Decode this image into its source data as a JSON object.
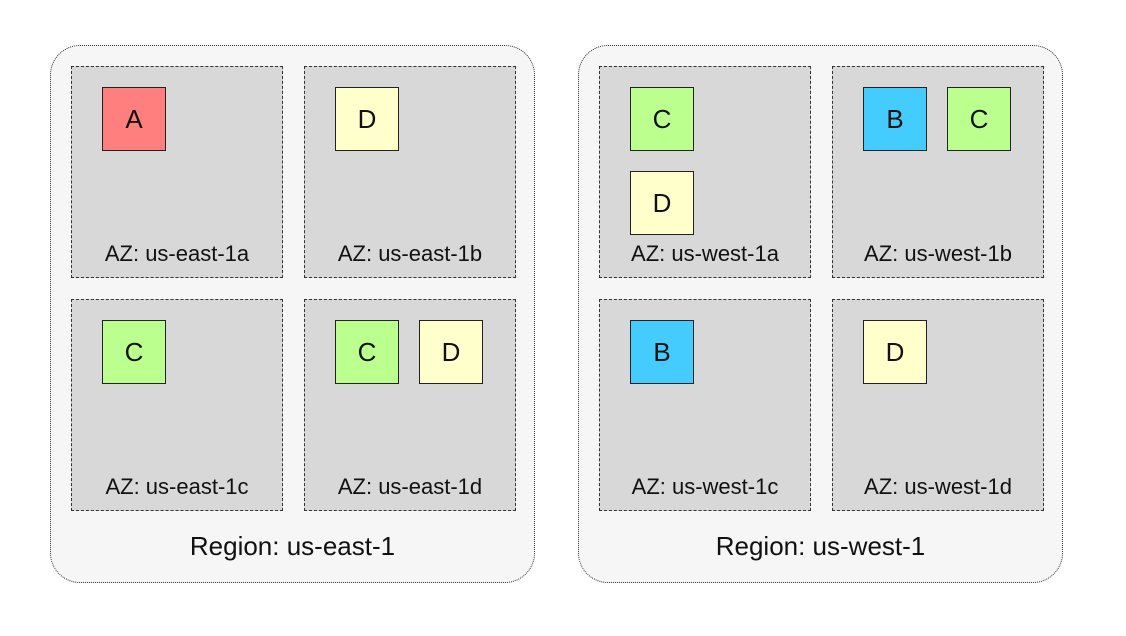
{
  "colors": {
    "A": "#ff7f7f",
    "B": "#44ccff",
    "C": "#bbff8f",
    "D": "#ffffcc"
  },
  "regions": [
    {
      "label": "Region: us-east-1",
      "azs": [
        {
          "label": "AZ: us-east-1a",
          "services": [
            "A"
          ]
        },
        {
          "label": "AZ: us-east-1b",
          "services": [
            "D"
          ]
        },
        {
          "label": "AZ: us-east-1c",
          "services": [
            "C"
          ]
        },
        {
          "label": "AZ: us-east-1d",
          "services": [
            "C",
            "D"
          ]
        }
      ]
    },
    {
      "label": "Region: us-west-1",
      "azs": [
        {
          "label": "AZ: us-west-1a",
          "services": [
            "C",
            "D"
          ]
        },
        {
          "label": "AZ: us-west-1b",
          "services": [
            "B",
            "C"
          ]
        },
        {
          "label": "AZ: us-west-1c",
          "services": [
            "B"
          ]
        },
        {
          "label": "AZ: us-west-1d",
          "services": [
            "D"
          ]
        }
      ]
    }
  ]
}
